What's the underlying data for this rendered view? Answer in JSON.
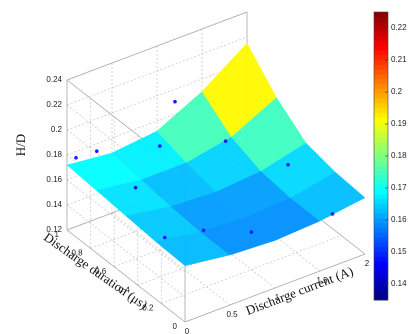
{
  "chart_data": {
    "type": "surface",
    "xlabel": "Discharge current (A)",
    "ylabel": "Discharge duration (μs)",
    "zlabel": "H/D",
    "x": [
      0,
      0.5,
      1,
      1.5,
      2
    ],
    "y": [
      0,
      0.25,
      0.5,
      0.75,
      1
    ],
    "z": [
      [
        0.165,
        0.16,
        0.158,
        0.16,
        0.165
      ],
      [
        0.166,
        0.16,
        0.158,
        0.16,
        0.167
      ],
      [
        0.168,
        0.162,
        0.16,
        0.163,
        0.172
      ],
      [
        0.17,
        0.165,
        0.165,
        0.172,
        0.19
      ],
      [
        0.172,
        0.168,
        0.172,
        0.19,
        0.215
      ]
    ],
    "scatter": {
      "color": "#1a1aff",
      "x": [
        0.2,
        0.5,
        0.9,
        1.2,
        1.8,
        1.9,
        0.3,
        0.6,
        1.0,
        1.5,
        0.1
      ],
      "y": [
        0.9,
        0.8,
        0.9,
        1.0,
        0.5,
        0.2,
        0.4,
        0.3,
        0.2,
        0.8,
        1.0
      ],
      "z": [
        0.185,
        0.155,
        0.17,
        0.19,
        0.16,
        0.14,
        0.15,
        0.155,
        0.15,
        0.165,
        0.175
      ]
    },
    "xlim": [
      0,
      2
    ],
    "ylim": [
      0,
      1
    ],
    "zlim": [
      0.12,
      0.24
    ],
    "xticks": [
      0,
      0.5,
      1,
      1.5,
      2
    ],
    "yticks": [
      0,
      0.2,
      0.4,
      0.6,
      0.8,
      1
    ],
    "zticks": [
      0.12,
      0.14,
      0.16,
      0.18,
      0.2,
      0.22,
      0.24
    ],
    "colormap": "jet",
    "clim": [
      0.135,
      0.225
    ],
    "cticks": [
      0.14,
      0.15,
      0.16,
      0.17,
      0.18,
      0.19,
      0.2,
      0.21,
      0.22
    ],
    "grid": true
  }
}
